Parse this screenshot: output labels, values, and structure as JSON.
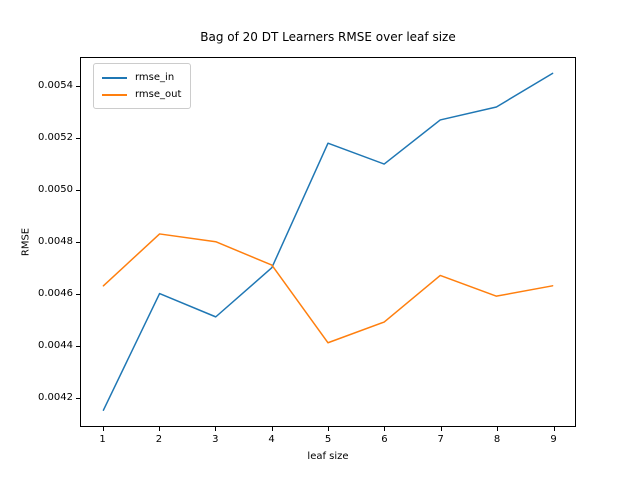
{
  "chart_data": {
    "type": "line",
    "title": "Bag of 20 DT Learners RMSE over leaf size",
    "xlabel": "leaf size",
    "ylabel": "RMSE",
    "x": [
      1,
      2,
      3,
      4,
      5,
      6,
      7,
      8,
      9
    ],
    "series": [
      {
        "name": "rmse_in",
        "color": "#1f77b4",
        "values": [
          0.00415,
          0.0046,
          0.00451,
          0.0047,
          0.00518,
          0.0051,
          0.00527,
          0.00532,
          0.00545
        ]
      },
      {
        "name": "rmse_out",
        "color": "#ff7f0e",
        "values": [
          0.00463,
          0.00483,
          0.0048,
          0.00471,
          0.00441,
          0.00449,
          0.00467,
          0.00459,
          0.00463
        ]
      }
    ],
    "xlim": [
      0.6,
      9.4
    ],
    "ylim": [
      0.004089,
      0.005509
    ],
    "x_ticks": [
      "1",
      "2",
      "3",
      "4",
      "5",
      "6",
      "7",
      "8",
      "9"
    ],
    "y_ticks": [
      "0.0042",
      "0.0044",
      "0.0046",
      "0.0048",
      "0.0050",
      "0.0052",
      "0.0054"
    ],
    "legend": {
      "position": "upper-left",
      "entries": [
        "rmse_in",
        "rmse_out"
      ]
    },
    "grid": false,
    "line_width": 1.5,
    "background_color": "#ffffff",
    "spine_color": "#000000",
    "legend_border_color": "#cccccc"
  }
}
